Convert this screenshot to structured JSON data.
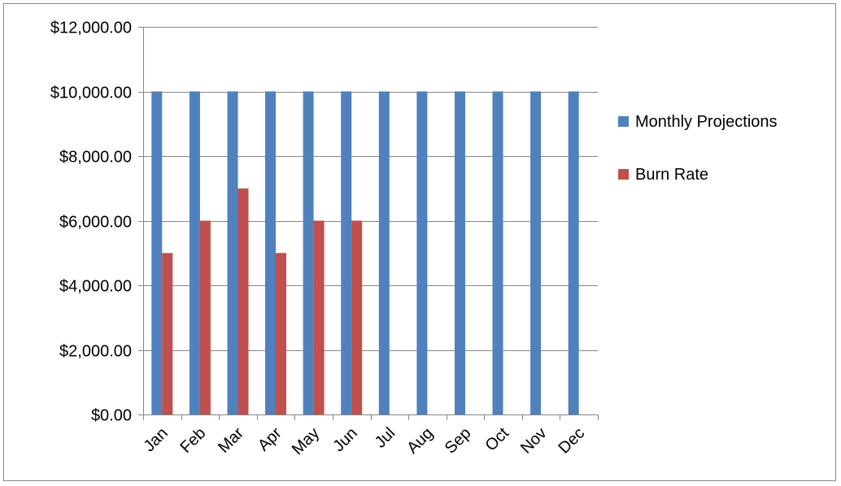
{
  "chart_data": {
    "type": "bar",
    "title": "",
    "xlabel": "",
    "ylabel": "",
    "categories": [
      "Jan",
      "Feb",
      "Mar",
      "Apr",
      "May",
      "Jun",
      "Jul",
      "Aug",
      "Sep",
      "Oct",
      "Nov",
      "Dec"
    ],
    "series": [
      {
        "name": "Monthly Projections",
        "color": "#4f81bd",
        "values": [
          10000,
          10000,
          10000,
          10000,
          10000,
          10000,
          10000,
          10000,
          10000,
          10000,
          10000,
          10000
        ]
      },
      {
        "name": "Burn Rate",
        "color": "#c0504d",
        "values": [
          5000,
          6000,
          7000,
          5000,
          6000,
          6000,
          null,
          null,
          null,
          null,
          null,
          null
        ]
      }
    ],
    "ylim": [
      0,
      12000
    ],
    "y_ticks": [
      {
        "value": 0,
        "label": "$0.00"
      },
      {
        "value": 2000,
        "label": "$2,000.00"
      },
      {
        "value": 4000,
        "label": "$4,000.00"
      },
      {
        "value": 6000,
        "label": "$6,000.00"
      },
      {
        "value": 8000,
        "label": "$8,000.00"
      },
      {
        "value": 10000,
        "label": "$10,000.00"
      },
      {
        "value": 12000,
        "label": "$12,000.00"
      }
    ],
    "grid": true,
    "legend_position": "right",
    "gridline_color": "#868686",
    "axis_color": "#868686"
  }
}
